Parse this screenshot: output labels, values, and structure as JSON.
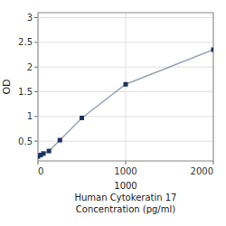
{
  "chart_data": {
    "type": "line",
    "x": [
      0,
      31.25,
      62.5,
      125,
      250,
      500,
      1000,
      2000
    ],
    "values": [
      0.19,
      0.22,
      0.25,
      0.3,
      0.52,
      0.97,
      1.65,
      2.35
    ],
    "color": "#1a3460",
    "marker": "square",
    "ylabel": "OD",
    "xlabel": [
      "1000",
      "Human Cytokeratin 17",
      "Concentration (pg/ml)"
    ],
    "xlim": [
      0,
      2000
    ],
    "ylim": [
      0.1,
      3.1
    ],
    "xticks": [
      0,
      1000,
      2000
    ],
    "yticks": [
      0.5,
      1.0,
      1.5,
      2.0,
      2.5,
      3.0
    ],
    "grid": true
  }
}
